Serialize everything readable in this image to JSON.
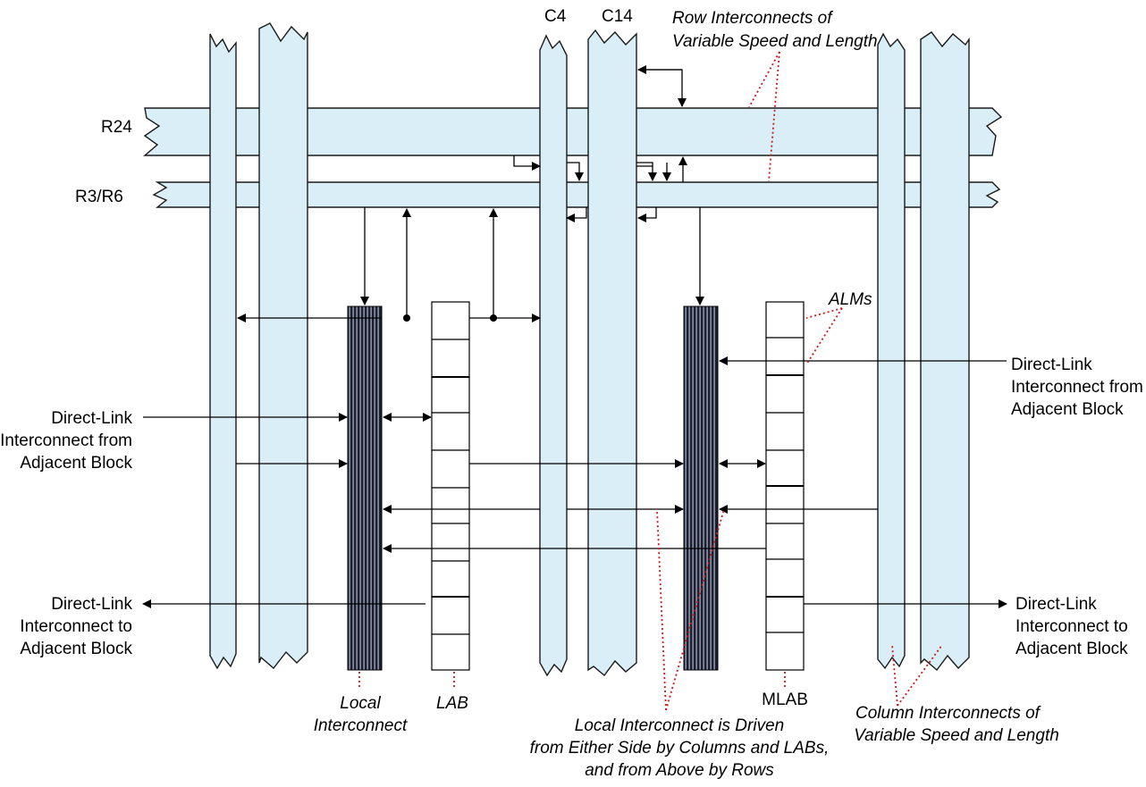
{
  "labels": {
    "r24": "R24",
    "r3r6": "R3/R6",
    "c4": "C4",
    "c14": "C14",
    "row_interconnects_1": "Row Interconnects of",
    "row_interconnects_2": "Variable Speed and Length",
    "alms": "ALMs",
    "dl_from_left_1": "Direct-Link",
    "dl_from_left_2": "Interconnect from",
    "dl_from_left_3": "Adjacent Block",
    "dl_from_right_1": "Direct-Link",
    "dl_from_right_2": "Interconnect from",
    "dl_from_right_3": "Adjacent Block",
    "dl_to_left_1": "Direct-Link",
    "dl_to_left_2": "Interconnect to",
    "dl_to_left_3": "Adjacent Block",
    "dl_to_right_1": "Direct-Link",
    "dl_to_right_2": "Interconnect to",
    "dl_to_right_3": "Adjacent Block",
    "local_1": "Local",
    "local_2": "Interconnect",
    "lab": "LAB",
    "mlab": "MLAB",
    "driven_1": "Local Interconnect is Driven",
    "driven_2": "from Either Side by Columns and LABs,",
    "driven_3": "and from Above by Rows",
    "column_1": "Column Interconnects of",
    "column_2": "Variable Speed and Length"
  },
  "colors": {
    "bus_fill": "#d9eef6",
    "local_interconnect": "#1c2030",
    "leader_line": "#d01818"
  }
}
